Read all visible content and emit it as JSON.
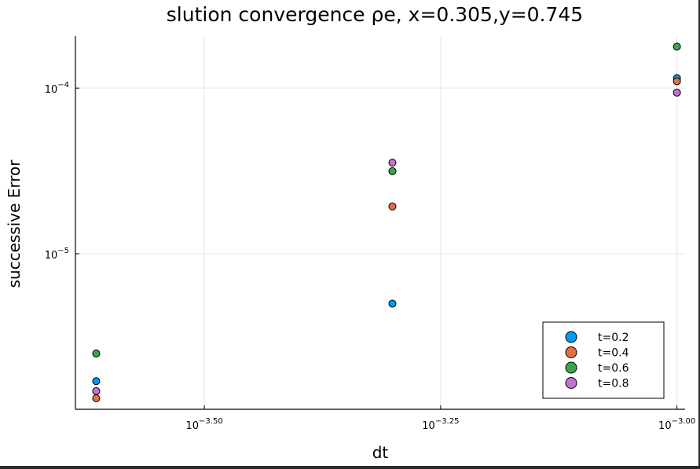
{
  "chart_data": {
    "type": "scatter",
    "title": "slution convergence ρe, x=0.305,y=0.745",
    "xlabel": "dt",
    "ylabel": "successive Error",
    "xscale": "log",
    "yscale": "log",
    "x_ticks": [
      {
        "value": 0.000316228,
        "base": "10",
        "exp": "−3.50"
      },
      {
        "value": 0.000562341,
        "base": "10",
        "exp": "−3.25"
      },
      {
        "value": 0.001,
        "base": "10",
        "exp": "−3.00"
      }
    ],
    "y_ticks": [
      {
        "value": 1e-05,
        "base": "10",
        "exp": "−5"
      },
      {
        "value": 0.0001,
        "base": "10",
        "exp": "−4"
      }
    ],
    "xlim": [
      0.000231,
      0.00102
    ],
    "ylim": [
      1.15e-06,
      0.000206
    ],
    "grid": true,
    "legend_position": "bottom-right",
    "x": [
      0.000243,
      0.0005,
      0.001
    ],
    "series": [
      {
        "name": "t=0.2",
        "color": "#009af9",
        "values": [
          1.7e-06,
          5e-06,
          0.000115
        ]
      },
      {
        "name": "t=0.4",
        "color": "#e26f46",
        "values": [
          1.34e-06,
          1.93e-05,
          0.00011
        ]
      },
      {
        "name": "t=0.6",
        "color": "#3da44d",
        "values": [
          2.5e-06,
          3.15e-05,
          0.000178
        ]
      },
      {
        "name": "t=0.8",
        "color": "#c271d2",
        "values": [
          1.48e-06,
          3.55e-05,
          9.4e-05
        ]
      }
    ]
  }
}
